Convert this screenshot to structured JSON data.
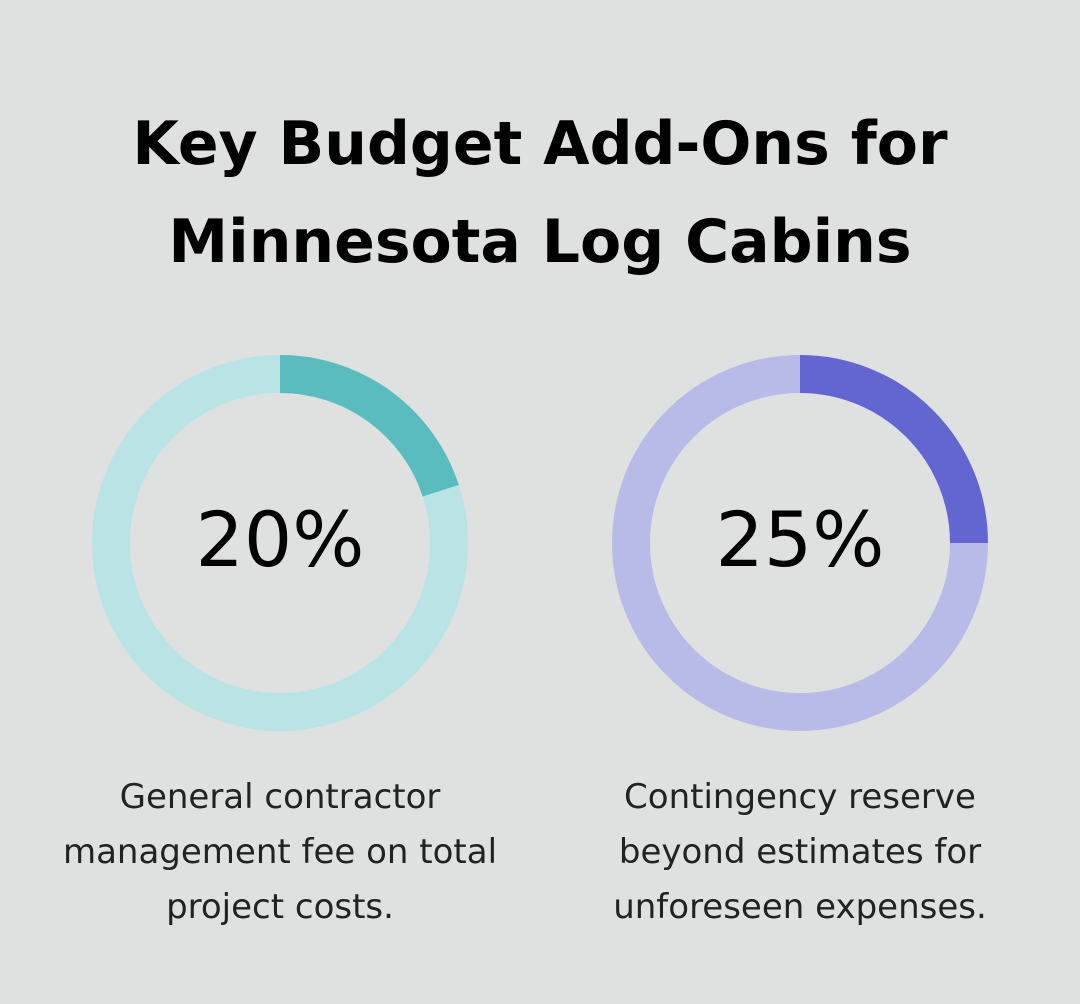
{
  "title": "Key Budget Add-Ons for Minnesota Log Cabins",
  "chart_data": [
    {
      "type": "donut",
      "values": [
        20
      ],
      "value_labels": [
        "20%"
      ],
      "color": "#5bbcc0",
      "track_color": "#b9e3e5",
      "caption": "General contractor management fee on total project costs."
    },
    {
      "type": "donut",
      "values": [
        25
      ],
      "value_labels": [
        "25%"
      ],
      "color": "#6366d1",
      "track_color": "#b8bbe8",
      "caption": "Contingency reserve beyond estimates for unforeseen expenses."
    }
  ]
}
